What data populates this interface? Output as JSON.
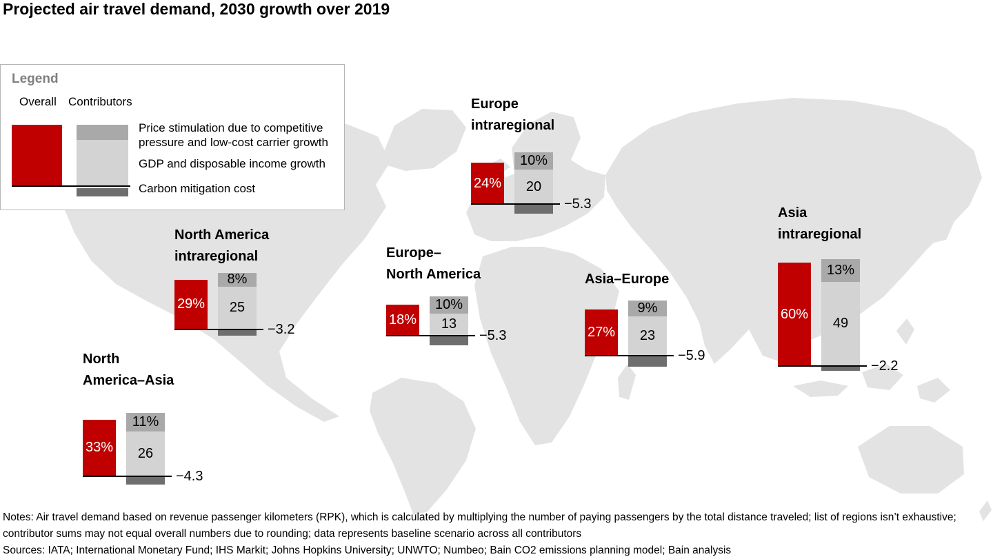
{
  "title": "Projected air travel demand, 2030 growth over 2019",
  "legend": {
    "title": "Legend",
    "overall_label": "Overall",
    "contributors_label": "Contributors",
    "items": [
      {
        "label": "Price stimulation due to competitive pressure and low-cost carrier growth"
      },
      {
        "label": "GDP and disposable income growth"
      },
      {
        "label": "Carbon mitigation cost"
      }
    ]
  },
  "chart_data": {
    "type": "bar",
    "title": "Projected air travel demand, 2030 growth over 2019",
    "value_unit": "percentage-point growth of air travel demand (RPK), 2030 vs 2019",
    "legend_position": "top-left",
    "grid": false,
    "colors": {
      "overall": "#c00000",
      "price": "#a9a9a9",
      "gdp": "#d3d3d3",
      "carbon": "#6e6e6e",
      "map": "#e3e3e3",
      "baseline": "#000000"
    },
    "series": [
      {
        "name": "Overall",
        "color": "#c00000"
      },
      {
        "name": "Price stimulation due to competitive pressure and low-cost carrier growth",
        "color": "#a9a9a9"
      },
      {
        "name": "GDP and disposable income growth",
        "color": "#d3d3d3"
      },
      {
        "name": "Carbon mitigation cost",
        "color": "#6e6e6e"
      }
    ],
    "groups": [
      {
        "id": "europe-intraregional",
        "region": "Europe intraregional",
        "title_lines": [
          "Europe",
          "intraregional"
        ],
        "overall": 24,
        "overall_label": "24%",
        "price": 10,
        "price_label": "10%",
        "gdp": 20,
        "gdp_label": "20",
        "carbon": -5.3,
        "carbon_label": "−5.3"
      },
      {
        "id": "north-america-intraregional",
        "region": "North America intraregional",
        "title_lines": [
          "North America",
          "intraregional"
        ],
        "overall": 29,
        "overall_label": "29%",
        "price": 8,
        "price_label": "8%",
        "gdp": 25,
        "gdp_label": "25",
        "carbon": -3.2,
        "carbon_label": "−3.2"
      },
      {
        "id": "europe-north-america",
        "region": "Europe–North America",
        "title_lines": [
          "Europe–",
          "North America"
        ],
        "overall": 18,
        "overall_label": "18%",
        "price": 10,
        "price_label": "10%",
        "gdp": 13,
        "gdp_label": "13",
        "carbon": -5.3,
        "carbon_label": "−5.3"
      },
      {
        "id": "asia-europe",
        "region": "Asia–Europe",
        "title_lines": [
          "Asia–Europe"
        ],
        "overall": 27,
        "overall_label": "27%",
        "price": 9,
        "price_label": "9%",
        "gdp": 23,
        "gdp_label": "23",
        "carbon": -5.9,
        "carbon_label": "−5.9"
      },
      {
        "id": "asia-intraregional",
        "region": "Asia intraregional",
        "title_lines": [
          "Asia",
          "intraregional"
        ],
        "overall": 60,
        "overall_label": "60%",
        "price": 13,
        "price_label": "13%",
        "gdp": 49,
        "gdp_label": "49",
        "carbon": -2.2,
        "carbon_label": "−2.2"
      },
      {
        "id": "north-america-asia",
        "region": "North America–Asia",
        "title_lines": [
          "North",
          "America–Asia"
        ],
        "overall": 33,
        "overall_label": "33%",
        "price": 11,
        "price_label": "11%",
        "gdp": 26,
        "gdp_label": "26",
        "carbon": -4.3,
        "carbon_label": "−4.3"
      }
    ]
  },
  "notes": "Notes: Air travel demand based on revenue passenger kilometers (RPK), which is calculated by multiplying the number of paying passengers by the total distance traveled; list of regions isn’t exhaustive; contributor sums may not equal overall numbers due to rounding; data represents baseline scenario across all contributors",
  "sources": "Sources: IATA; International Monetary Fund; IHS Markit; Johns Hopkins University; UNWTO; Numbeo; Bain CO2 emissions planning model; Bain analysis"
}
